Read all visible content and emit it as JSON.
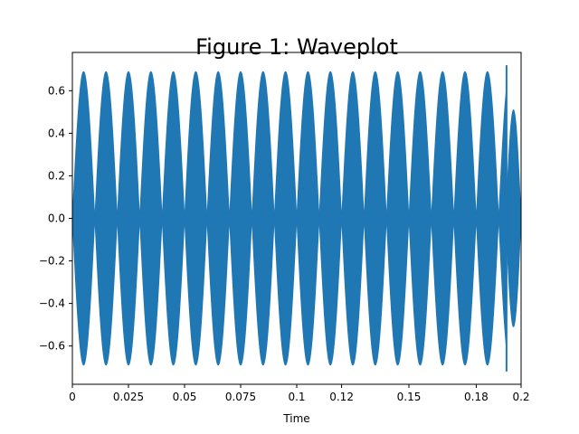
{
  "chart_data": {
    "type": "area",
    "title": "Figure 1: Waveplot",
    "xlabel": "Time",
    "ylabel": "",
    "xlim": [
      0,
      0.2
    ],
    "ylim": [
      -0.78,
      0.78
    ],
    "xticks": [
      0,
      0.025,
      0.05,
      0.075,
      0.1,
      0.12,
      0.15,
      0.18,
      0.2
    ],
    "xtick_labels": [
      "0",
      "0.025",
      "0.05",
      "0.075",
      "0.1",
      "0.12",
      "0.15",
      "0.18",
      "0.2"
    ],
    "yticks": [
      -0.6,
      -0.4,
      -0.2,
      0.0,
      0.2,
      0.4,
      0.6
    ],
    "ytick_labels": [
      "−0.6",
      "−0.4",
      "−0.2",
      "0.0",
      "0.2",
      "0.4",
      "0.6"
    ],
    "series": [
      {
        "color": "#1f77b4",
        "envelope_amplitude": 0.69,
        "envelope_period": 0.01,
        "envelope_start": 0.0,
        "envelope_end": 0.1935,
        "tail_amplitude": 0.51,
        "tail_start": 0.1935,
        "tail_end": 0.2,
        "spike_x": 0.1935,
        "spike_y": [
          -0.72,
          0.72
        ],
        "grid": false
      }
    ]
  }
}
